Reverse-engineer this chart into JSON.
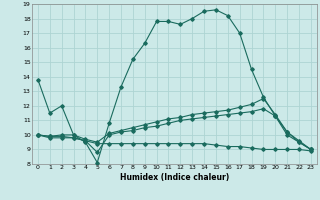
{
  "xlabel": "Humidex (Indice chaleur)",
  "bg_color": "#cce9e8",
  "grid_color": "#aed4d3",
  "line_color": "#1a6b5e",
  "xlim": [
    -0.5,
    23.5
  ],
  "ylim": [
    8,
    19
  ],
  "yticks": [
    8,
    9,
    10,
    11,
    12,
    13,
    14,
    15,
    16,
    17,
    18,
    19
  ],
  "xticks": [
    0,
    1,
    2,
    3,
    4,
    5,
    6,
    7,
    8,
    9,
    10,
    11,
    12,
    13,
    14,
    15,
    16,
    17,
    18,
    19,
    20,
    21,
    22,
    23
  ],
  "line1_x": [
    0,
    1,
    2,
    3,
    4,
    5,
    6,
    7,
    8,
    9,
    10,
    11,
    12,
    13,
    14,
    15,
    16,
    17,
    18,
    19,
    20,
    21,
    22,
    23
  ],
  "line1_y": [
    13.8,
    11.5,
    12.0,
    10.0,
    9.5,
    8.1,
    10.8,
    13.3,
    15.2,
    16.3,
    17.8,
    17.8,
    17.6,
    18.0,
    18.5,
    18.6,
    18.2,
    17.0,
    14.5,
    12.6,
    11.3,
    10.2,
    9.5,
    9.0
  ],
  "line2_x": [
    0,
    1,
    2,
    3,
    4,
    5,
    6,
    7,
    8,
    9,
    10,
    11,
    12,
    13,
    14,
    15,
    16,
    17,
    18,
    19,
    20,
    21,
    22,
    23
  ],
  "line2_y": [
    10.0,
    9.9,
    10.0,
    10.0,
    9.7,
    9.5,
    10.1,
    10.3,
    10.5,
    10.7,
    10.9,
    11.1,
    11.2,
    11.4,
    11.5,
    11.6,
    11.7,
    11.9,
    12.1,
    12.5,
    11.4,
    10.2,
    9.6,
    9.0
  ],
  "line3_x": [
    0,
    1,
    2,
    3,
    4,
    5,
    6,
    7,
    8,
    9,
    10,
    11,
    12,
    13,
    14,
    15,
    16,
    17,
    18,
    19,
    20,
    21,
    22,
    23
  ],
  "line3_y": [
    10.0,
    9.9,
    9.9,
    9.8,
    9.6,
    8.8,
    10.0,
    10.2,
    10.3,
    10.5,
    10.6,
    10.8,
    11.0,
    11.1,
    11.2,
    11.3,
    11.4,
    11.5,
    11.6,
    11.8,
    11.3,
    10.0,
    9.5,
    9.0
  ],
  "line4_x": [
    0,
    1,
    2,
    3,
    4,
    5,
    6,
    7,
    8,
    9,
    10,
    11,
    12,
    13,
    14,
    15,
    16,
    17,
    18,
    19,
    20,
    21,
    22,
    23
  ],
  "line4_y": [
    10.0,
    9.8,
    9.8,
    9.8,
    9.6,
    9.4,
    9.4,
    9.4,
    9.4,
    9.4,
    9.4,
    9.4,
    9.4,
    9.4,
    9.4,
    9.3,
    9.2,
    9.2,
    9.1,
    9.0,
    9.0,
    9.0,
    9.0,
    8.9
  ]
}
